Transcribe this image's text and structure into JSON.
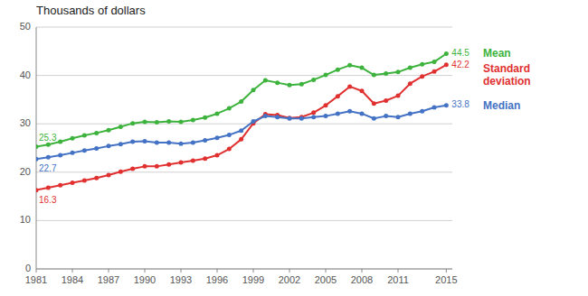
{
  "chart_data": {
    "type": "line",
    "title": "Thousands of dollars",
    "x": [
      1981,
      1982,
      1983,
      1984,
      1985,
      1986,
      1987,
      1988,
      1989,
      1990,
      1991,
      1992,
      1993,
      1994,
      1995,
      1996,
      1997,
      1998,
      1999,
      2000,
      2001,
      2002,
      2003,
      2004,
      2005,
      2006,
      2007,
      2008,
      2009,
      2010,
      2011,
      2012,
      2013,
      2014,
      2015
    ],
    "series": [
      {
        "name": "Mean",
        "color": "#3db33d",
        "values": [
          25.3,
          25.7,
          26.3,
          27.0,
          27.6,
          28.1,
          28.7,
          29.4,
          30.1,
          30.4,
          30.3,
          30.5,
          30.4,
          30.8,
          31.3,
          32.1,
          33.2,
          34.6,
          37.0,
          39.0,
          38.5,
          38.0,
          38.2,
          39.1,
          40.1,
          41.2,
          42.1,
          41.6,
          40.1,
          40.4,
          40.7,
          41.6,
          42.3,
          42.8,
          44.5
        ],
        "value_labels": [
          "25.3",
          null,
          null,
          null,
          null,
          null,
          null,
          null,
          null,
          null,
          null,
          null,
          null,
          null,
          null,
          null,
          null,
          null,
          null,
          null,
          null,
          null,
          null,
          null,
          null,
          null,
          null,
          null,
          null,
          null,
          null,
          null,
          null,
          null,
          "44.5"
        ]
      },
      {
        "name": "Standard\ndeviation",
        "color": "#e03030",
        "values": [
          16.3,
          16.8,
          17.3,
          17.8,
          18.3,
          18.8,
          19.4,
          20.1,
          20.7,
          21.2,
          21.2,
          21.6,
          22.0,
          22.4,
          22.8,
          23.5,
          24.8,
          26.8,
          30.1,
          32.0,
          31.8,
          31.2,
          31.4,
          32.3,
          33.8,
          35.7,
          37.7,
          36.8,
          34.2,
          34.8,
          35.8,
          38.3,
          39.8,
          40.8,
          42.2
        ],
        "value_labels": [
          "16.3",
          null,
          null,
          null,
          null,
          null,
          null,
          null,
          null,
          null,
          null,
          null,
          null,
          null,
          null,
          null,
          null,
          null,
          null,
          null,
          null,
          null,
          null,
          null,
          null,
          null,
          null,
          null,
          null,
          null,
          null,
          null,
          null,
          null,
          "42.2"
        ]
      },
      {
        "name": "Median",
        "color": "#4472c4",
        "values": [
          22.7,
          23.1,
          23.5,
          24.0,
          24.5,
          24.9,
          25.4,
          25.8,
          26.3,
          26.4,
          26.1,
          26.1,
          25.9,
          26.1,
          26.6,
          27.1,
          27.7,
          28.6,
          30.5,
          31.6,
          31.4,
          31.1,
          31.1,
          31.4,
          31.6,
          32.1,
          32.6,
          32.1,
          31.1,
          31.6,
          31.4,
          32.1,
          32.6,
          33.4,
          33.8
        ],
        "value_labels": [
          "22.7",
          null,
          null,
          null,
          null,
          null,
          null,
          null,
          null,
          null,
          null,
          null,
          null,
          null,
          null,
          null,
          null,
          null,
          null,
          null,
          null,
          null,
          null,
          null,
          null,
          null,
          null,
          null,
          null,
          null,
          null,
          null,
          null,
          null,
          "33.8"
        ]
      }
    ],
    "xlim": [
      1981,
      2015.5
    ],
    "xticks": [
      1981,
      1984,
      1987,
      1990,
      1993,
      1996,
      1999,
      2002,
      2005,
      2008,
      2011,
      2015
    ],
    "ylim": [
      0,
      50
    ],
    "yticks": [
      0,
      10,
      20,
      30,
      40,
      50
    ],
    "grid": true,
    "marker": "circle",
    "legend": "right"
  }
}
